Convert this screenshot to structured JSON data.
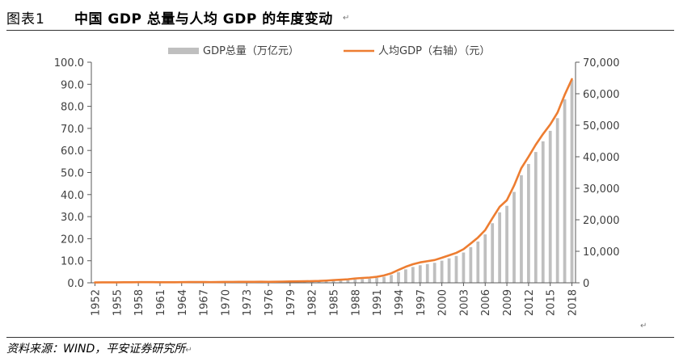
{
  "header": {
    "figure_label": "图表1",
    "title": "中国 GDP 总量与人均 GDP 的年度变动",
    "return_mark": "↵"
  },
  "footer": {
    "source": "资料来源：WIND，平安证券研究所",
    "return_mark": "↵",
    "end_mark": "↵"
  },
  "colors": {
    "bars": "#bfbfbf",
    "line": "#ed7d31",
    "axis": "#595959",
    "text": "#404040"
  },
  "chart_data": {
    "type": "bar",
    "title": "",
    "xlabel": "",
    "ylabel": "",
    "y2label": "",
    "legend_placement": "top-center",
    "grid": false,
    "ylim": [
      0,
      100
    ],
    "y_ticks": [
      "0.0",
      "10.0",
      "20.0",
      "30.0",
      "40.0",
      "50.0",
      "60.0",
      "70.0",
      "80.0",
      "90.0",
      "100.0"
    ],
    "y2lim": [
      0,
      70000
    ],
    "y2_ticks": [
      "0",
      "10,000",
      "20,000",
      "30,000",
      "40,000",
      "50,000",
      "60,000",
      "70,000"
    ],
    "x_tick_labels": [
      "1952",
      "1955",
      "1958",
      "1961",
      "1964",
      "1967",
      "1970",
      "1973",
      "1976",
      "1979",
      "1982",
      "1985",
      "1988",
      "1991",
      "1994",
      "1997",
      "2000",
      "2003",
      "2006",
      "2009",
      "2012",
      "2015",
      "2018"
    ],
    "x": [
      1952,
      1953,
      1954,
      1955,
      1956,
      1957,
      1958,
      1959,
      1960,
      1961,
      1962,
      1963,
      1964,
      1965,
      1966,
      1967,
      1968,
      1969,
      1970,
      1971,
      1972,
      1973,
      1974,
      1975,
      1976,
      1977,
      1978,
      1979,
      1980,
      1981,
      1982,
      1983,
      1984,
      1985,
      1986,
      1987,
      1988,
      1989,
      1990,
      1991,
      1992,
      1993,
      1994,
      1995,
      1996,
      1997,
      1998,
      1999,
      2000,
      2001,
      2002,
      2003,
      2004,
      2005,
      2006,
      2007,
      2008,
      2009,
      2010,
      2011,
      2012,
      2013,
      2014,
      2015,
      2016,
      2017,
      2018
    ],
    "series": [
      {
        "name": "GDP总量（万亿元）",
        "axis": "left",
        "type": "bar",
        "values": [
          0.07,
          0.08,
          0.09,
          0.09,
          0.1,
          0.11,
          0.13,
          0.14,
          0.15,
          0.12,
          0.12,
          0.12,
          0.14,
          0.17,
          0.19,
          0.18,
          0.17,
          0.19,
          0.23,
          0.24,
          0.25,
          0.27,
          0.28,
          0.3,
          0.29,
          0.32,
          0.37,
          0.41,
          0.46,
          0.49,
          0.54,
          0.6,
          0.72,
          0.9,
          1.03,
          1.21,
          1.5,
          1.7,
          1.87,
          2.18,
          2.69,
          3.53,
          4.82,
          6.1,
          7.18,
          7.97,
          8.52,
          9.06,
          10.03,
          11.09,
          12.17,
          13.74,
          16.18,
          18.73,
          21.94,
          27.02,
          31.95,
          34.91,
          41.21,
          48.79,
          53.86,
          59.3,
          64.13,
          68.89,
          74.64,
          83.2,
          91.93
        ]
      },
      {
        "name": "人均GDP（右轴）（元）",
        "axis": "right",
        "type": "line",
        "values": [
          119,
          142,
          144,
          150,
          166,
          168,
          200,
          216,
          218,
          185,
          173,
          181,
          208,
          240,
          254,
          235,
          222,
          243,
          275,
          288,
          292,
          309,
          310,
          327,
          316,
          339,
          385,
          423,
          468,
          497,
          533,
          588,
          702,
          866,
          973,
          1123,
          1378,
          1536,
          1663,
          1912,
          2334,
          3027,
          4081,
          5091,
          5898,
          6481,
          6860,
          7229,
          7942,
          8717,
          9506,
          10666,
          12487,
          14368,
          16738,
          20505,
          24121,
          26222,
          30876,
          36403,
          40007,
          43852,
          47203,
          50251,
          53980,
          59660,
          64644
        ]
      }
    ]
  }
}
